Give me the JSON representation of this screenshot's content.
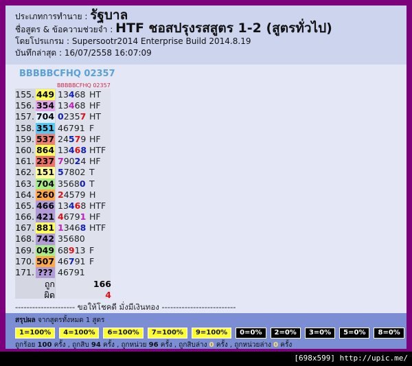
{
  "header": {
    "type_label": "ประเภทการทำนาย :",
    "type_value": "รัฐบาล",
    "formula_label": "ชื่อสูตร & ข้อความช่วยจำ :",
    "formula_value": "HTF ชอสปรุงรสสูตร 1-2 (สูตรทั่วไป)",
    "program_label": "โดยโปรแกรม :",
    "program_value": "Supersootr2014 Enterprise Build 2014.8.19",
    "saved_label": "บันทึกล่าสุด :",
    "saved_value": "16/07/2558 16:07:09"
  },
  "formula_title": "BBBBBCFHQ 02357",
  "column_header": "BBBBBCFHQ 02357",
  "rows": [
    {
      "no": "155.",
      "code": "449",
      "code_color": "#ffff55",
      "digits": [
        {
          "text": "13"
        },
        {
          "text": "4",
          "color": "#1020c0"
        },
        {
          "text": "68"
        }
      ],
      "result": "HT"
    },
    {
      "no": "156.",
      "code": "354",
      "code_color": "#e4a4ec",
      "digits": [
        {
          "text": "13"
        },
        {
          "text": "4",
          "color": "#c020c0"
        },
        {
          "text": "68"
        }
      ],
      "result": "HF"
    },
    {
      "no": "157.",
      "code": "704",
      "code_color": "#dcecfc",
      "digits": [
        {
          "text": "0",
          "color": "#1020c0"
        },
        {
          "text": "235"
        },
        {
          "text": "7",
          "color": "#e01010"
        }
      ],
      "result": "HT"
    },
    {
      "no": "158.",
      "code": "351",
      "code_color": "#55c8f4",
      "digits": [
        {
          "text": "46791"
        }
      ],
      "result": "F"
    },
    {
      "no": "159.",
      "code": "537",
      "code_color": "#f08070",
      "digits": [
        {
          "text": "24"
        },
        {
          "text": "5",
          "color": "#1020c0"
        },
        {
          "text": "7",
          "color": "#e01010"
        },
        {
          "text": "9"
        }
      ],
      "result": "HF"
    },
    {
      "no": "160.",
      "code": "864",
      "code_color": "#ffff55",
      "digits": [
        {
          "text": "13"
        },
        {
          "text": "4",
          "color": "#1020c0"
        },
        {
          "text": "6",
          "color": "#e01010"
        },
        {
          "text": "8",
          "color": "#1020c0"
        }
      ],
      "result": "HTF"
    },
    {
      "no": "161.",
      "code": "237",
      "code_color": "#f07068",
      "digits": [
        {
          "text": "7",
          "color": "#c020c0"
        },
        {
          "text": "90"
        },
        {
          "text": "2",
          "color": "#1020c0"
        },
        {
          "text": "4"
        }
      ],
      "result": "HF"
    },
    {
      "no": "162.",
      "code": "151",
      "code_color": "#ffff99",
      "digits": [
        {
          "text": "5",
          "color": "#1020c0"
        },
        {
          "text": "7802"
        }
      ],
      "result": "T"
    },
    {
      "no": "163.",
      "code": "704",
      "code_color": "#a8ec88",
      "digits": [
        {
          "text": "3568"
        },
        {
          "text": "0",
          "color": "#1020c0"
        }
      ],
      "result": "T"
    },
    {
      "no": "164.",
      "code": "260",
      "code_color": "#ffa844",
      "digits": [
        {
          "text": "2",
          "color": "#e01010"
        },
        {
          "text": "4579"
        }
      ],
      "result": "H"
    },
    {
      "no": "165.",
      "code": "466",
      "code_color": "#b09ad8",
      "digits": [
        {
          "text": "13"
        },
        {
          "text": "4",
          "color": "#1020c0"
        },
        {
          "text": "6",
          "color": "#e01010"
        },
        {
          "text": "8"
        }
      ],
      "result": "HTF"
    },
    {
      "no": "166.",
      "code": "421",
      "code_color": "#b09ad8",
      "digits": [
        {
          "text": "4",
          "color": "#e01010"
        },
        {
          "text": "679"
        },
        {
          "text": "1",
          "color": "#c020c0"
        }
      ],
      "result": "HF"
    },
    {
      "no": "167.",
      "code": "881",
      "code_color": "#ffff55",
      "digits": [
        {
          "text": "1",
          "color": "#c020c0"
        },
        {
          "text": "346"
        },
        {
          "text": "8",
          "color": "#1020c0"
        }
      ],
      "result": "HTF"
    },
    {
      "no": "168.",
      "code": "742",
      "code_color": "#b09ad8",
      "digits": [
        {
          "text": "35680"
        }
      ],
      "result": ""
    },
    {
      "no": "169.",
      "code": "049",
      "code_color": "#a8ec88",
      "digits": [
        {
          "text": "68"
        },
        {
          "text": "9",
          "color": "#e01010"
        },
        {
          "text": "13"
        }
      ],
      "result": "F"
    },
    {
      "no": "170.",
      "code": "507",
      "code_color": "#ffa844",
      "digits": [
        {
          "text": "46"
        },
        {
          "text": "7",
          "color": "#1020c0"
        },
        {
          "text": "91"
        }
      ],
      "result": "F"
    },
    {
      "no": "171.",
      "code": "???",
      "code_color": "#b09ad8",
      "digits": [
        {
          "text": "46791"
        }
      ],
      "result": ""
    }
  ],
  "totals": {
    "correct_label": "ถูก",
    "correct": 166,
    "wrong_label": "ผิด",
    "wrong": 4
  },
  "divider": "--------------------- ขอให้โชคดี มั่งมีเงินทอง --------------------------",
  "summary": {
    "title": "สรุปผล",
    "subtitle": "จากสูตรทั้งหมด 1 สูตร",
    "badges": [
      {
        "text": "1=100%",
        "style": "hit"
      },
      {
        "text": "4=100%",
        "style": "hit"
      },
      {
        "text": "6=100%",
        "style": "hit"
      },
      {
        "text": "7=100%",
        "style": "hit"
      },
      {
        "text": "9=100%",
        "style": "hit"
      },
      {
        "text": "0=0%",
        "style": "miss"
      },
      {
        "text": "2=0%",
        "style": "miss"
      },
      {
        "text": "3=0%",
        "style": "miss"
      },
      {
        "text": "5=0%",
        "style": "miss"
      },
      {
        "text": "8=0%",
        "style": "miss"
      }
    ],
    "counts": [
      {
        "label": "ถูกร้อย",
        "value": 100,
        "unit": "ครั้ง ,"
      },
      {
        "label": "ถูกสิบ",
        "value": 94,
        "unit": "ครั้ง ,"
      },
      {
        "label": "ถูกหน่วย",
        "value": 96,
        "unit": "ครั้ง ,"
      },
      {
        "label": "ถูกสิบล่าง",
        "value": 0,
        "unit": "ครั้ง ,"
      },
      {
        "label": "ถูกหน่วยล่าง",
        "value": 0,
        "unit": "ครั้ง"
      }
    ]
  },
  "watermark": "[698x599] http://upic.me/"
}
